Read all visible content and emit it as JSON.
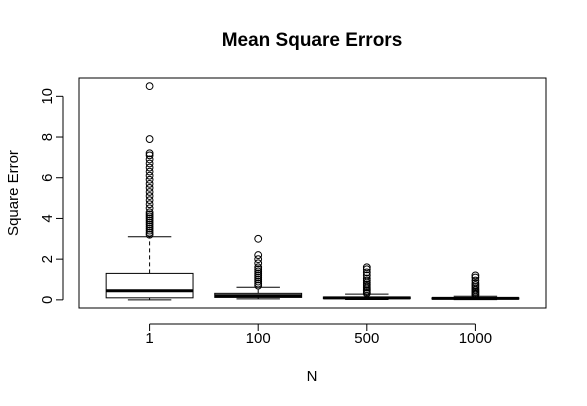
{
  "chart_data": {
    "type": "boxplot",
    "title": "Mean Square Errors",
    "xlabel": "N",
    "ylabel": "Square Error",
    "categories": [
      "1",
      "100",
      "500",
      "1000"
    ],
    "ylim": [
      -0.4,
      10.9
    ],
    "yticks": [
      0,
      2,
      4,
      6,
      8,
      10
    ],
    "boxes": [
      {
        "label": "1",
        "whisker_low": 0.0,
        "q1": 0.1,
        "median": 0.45,
        "q3": 1.3,
        "whisker_high": 3.1,
        "outliers": [
          3.2,
          3.3,
          3.4,
          3.5,
          3.6,
          3.7,
          3.8,
          3.9,
          4.0,
          4.1,
          4.2,
          4.3,
          4.5,
          4.7,
          4.9,
          5.1,
          5.3,
          5.5,
          5.7,
          5.9,
          6.1,
          6.3,
          6.5,
          6.7,
          6.9,
          7.1,
          7.2,
          7.9,
          10.5
        ]
      },
      {
        "label": "100",
        "whisker_low": 0.05,
        "q1": 0.12,
        "median": 0.2,
        "q3": 0.32,
        "whisker_high": 0.62,
        "outliers": [
          0.7,
          0.8,
          0.9,
          1.0,
          1.1,
          1.2,
          1.3,
          1.4,
          1.5,
          1.6,
          1.8,
          2.0,
          2.2,
          3.0
        ]
      },
      {
        "label": "500",
        "whisker_low": 0.02,
        "q1": 0.06,
        "median": 0.1,
        "q3": 0.14,
        "whisker_high": 0.28,
        "outliers": [
          0.32,
          0.38,
          0.45,
          0.52,
          0.6,
          0.68,
          0.76,
          0.85,
          0.95,
          1.05,
          1.2,
          1.35,
          1.5,
          1.6
        ]
      },
      {
        "label": "1000",
        "whisker_low": 0.01,
        "q1": 0.04,
        "median": 0.07,
        "q3": 0.1,
        "whisker_high": 0.18,
        "outliers": [
          0.22,
          0.28,
          0.34,
          0.4,
          0.47,
          0.55,
          0.63,
          0.72,
          0.82,
          0.95,
          1.1,
          1.2
        ]
      }
    ]
  }
}
